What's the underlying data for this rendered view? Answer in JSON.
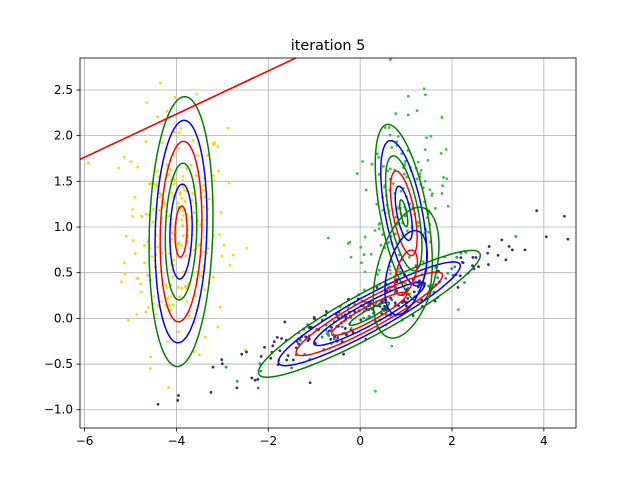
{
  "chart_data": {
    "type": "scatter",
    "title": "iteration 5",
    "xlabel": "",
    "ylabel": "",
    "xlim": [
      -6.1,
      4.7
    ],
    "ylim": [
      -1.2,
      2.85
    ],
    "grid": true,
    "x_ticks": [
      -6,
      -4,
      -2,
      0,
      2,
      4
    ],
    "y_ticks": [
      -1.0,
      -0.5,
      0.0,
      0.5,
      1.0,
      1.5,
      2.0,
      2.5
    ],
    "x_tick_labels": [
      "−6",
      "−4",
      "−2",
      "0",
      "2",
      "4"
    ],
    "y_tick_labels": [
      "−1.0",
      "−0.5",
      "0.0",
      "0.5",
      "1.0",
      "1.5",
      "2.0",
      "2.5"
    ],
    "point_clusters": [
      {
        "color": "#f5d90a",
        "center": [
          -4.0,
          0.95
        ],
        "spread": [
          0.55,
          0.65
        ],
        "corr": 0.0,
        "n": 240
      },
      {
        "color": "#3fbf3f",
        "center": [
          0.9,
          1.15
        ],
        "spread": [
          0.55,
          0.55
        ],
        "corr": 0.25,
        "n": 160
      },
      {
        "color": "#2a8f8a",
        "center": [
          0.5,
          0.15
        ],
        "spread": [
          1.2,
          0.3
        ],
        "corr": 0.93,
        "n": 110
      },
      {
        "color": "#3b2a7a",
        "center": [
          0.0,
          0.05
        ],
        "spread": [
          1.9,
          0.45
        ],
        "corr": 0.96,
        "n": 160
      }
    ],
    "ellipse_groups": [
      {
        "center": [
          -3.9,
          0.95
        ],
        "rx": [
          0.13,
          0.24,
          0.34,
          0.45,
          0.56,
          0.69
        ],
        "ry": [
          0.28,
          0.52,
          0.75,
          0.99,
          1.22,
          1.48
        ],
        "angle_deg": -4,
        "colors": [
          "#ff0000",
          "#0000ff",
          "#008000",
          "#ff0000",
          "#0000ff",
          "#008000"
        ]
      },
      {
        "center": [
          0.95,
          1.15
        ],
        "rx": [
          0.06,
          0.14,
          0.22,
          0.3,
          0.38,
          0.48
        ],
        "ry": [
          0.16,
          0.32,
          0.5,
          0.68,
          0.86,
          1.05
        ],
        "angle_deg": 25,
        "colors": [
          "#008000",
          "#0000ff",
          "#ff0000",
          "#008000",
          "#0000ff",
          "#008000"
        ]
      },
      {
        "center": [
          0.2,
          0.05
        ],
        "rx": [
          0.45,
          0.85,
          1.25,
          1.65,
          2.05,
          2.5
        ],
        "ry": [
          0.05,
          0.09,
          0.13,
          0.17,
          0.21,
          0.26
        ],
        "angle_deg": 15,
        "colors": [
          "#008000",
          "#ff0000",
          "#0000ff",
          "#ff0000",
          "#0000ff",
          "#008000"
        ]
      },
      {
        "center": [
          1.0,
          0.5
        ],
        "rx": [
          0.3,
          0.55,
          0.85
        ],
        "ry": [
          0.18,
          0.35,
          0.55
        ],
        "angle_deg": 45,
        "colors": [
          "#ff0000",
          "#0000ff",
          "#008000"
        ]
      }
    ],
    "line": {
      "color": "#ff0000",
      "x": [
        -6.1,
        -1.4
      ],
      "y": [
        1.74,
        2.85
      ]
    }
  }
}
